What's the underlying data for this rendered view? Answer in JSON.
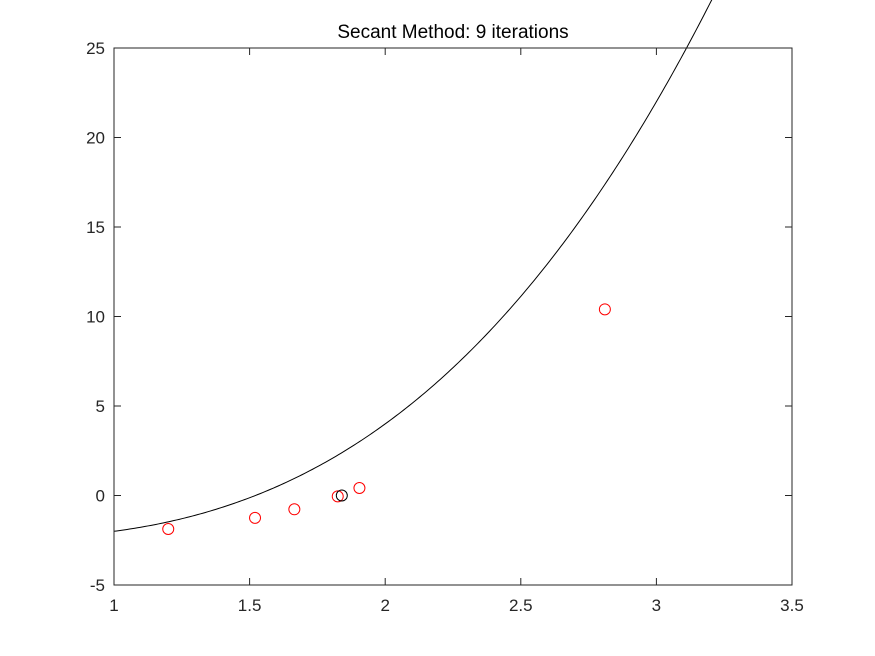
{
  "chart_data": {
    "type": "line",
    "title": "Secant Method: 9 iterations",
    "xlabel": "",
    "ylabel": "",
    "xlim": [
      1,
      3.5
    ],
    "ylim": [
      -5,
      25
    ],
    "xticks": [
      1,
      1.5,
      2,
      2.5,
      3,
      3.5
    ],
    "xtick_labels": [
      "1",
      "1.5",
      "2",
      "2.5",
      "3",
      "3.5"
    ],
    "yticks": [
      -5,
      0,
      5,
      10,
      15,
      20,
      25
    ],
    "ytick_labels": [
      "-5",
      "0",
      "5",
      "10",
      "15",
      "20",
      "25"
    ],
    "grid": false,
    "legend": "none",
    "curve": {
      "x_range": [
        1,
        3.31
      ],
      "function": "x^3 - x - 2 (approx.)",
      "color": "#000000"
    },
    "iterates": {
      "color": "#ff0000",
      "marker": "circle",
      "x": [
        1.2,
        1.52,
        1.665,
        1.825,
        1.905,
        2.81
      ],
      "y": [
        -1.87,
        -1.25,
        -0.77,
        -0.05,
        0.42,
        10.4
      ]
    },
    "root": {
      "color": "#000000",
      "marker": "circle",
      "x": 1.84,
      "y": 0.0
    }
  }
}
